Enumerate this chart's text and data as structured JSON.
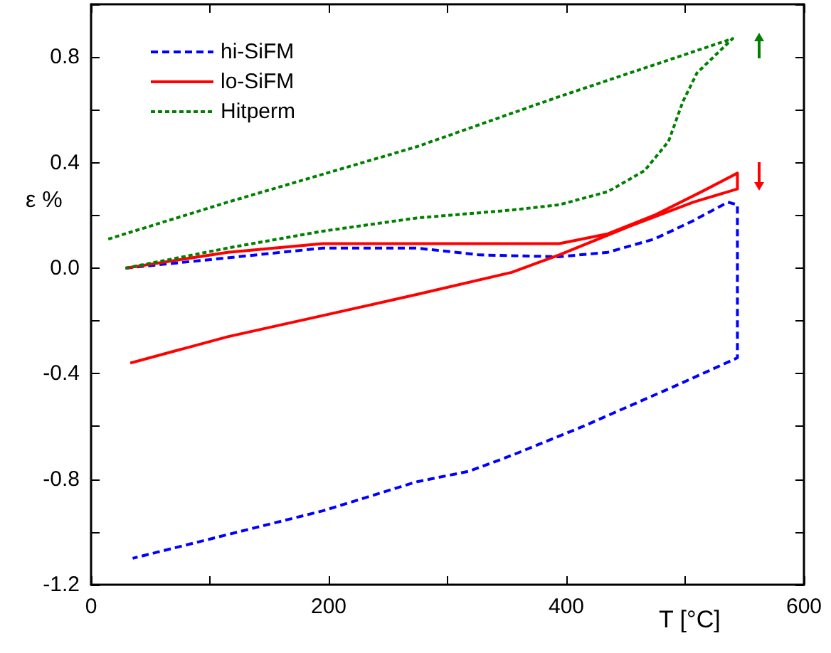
{
  "chart_data": {
    "type": "line",
    "xlabel": "T [°C]",
    "ylabel": "ε %",
    "xlim": [
      0,
      600
    ],
    "xticks": [
      0,
      {
        "value": 100,
        "label": null
      },
      200,
      {
        "value": 300,
        "label": null
      },
      400,
      {
        "value": 500,
        "label": null
      },
      600
    ],
    "ylim": [
      -1.2,
      1.0
    ],
    "yticks": [
      -1.2,
      {
        "value": -1.0,
        "label": null
      },
      -0.8,
      {
        "value": -0.6,
        "label": null
      },
      -0.4,
      {
        "value": -0.2,
        "label": null
      },
      {
        "value": 0,
        "label": "0.0"
      },
      {
        "value": 0.2,
        "label": null
      },
      0.4,
      {
        "value": 0.6,
        "label": null
      },
      0.8,
      {
        "value": 1.0,
        "label": null
      }
    ],
    "grid": false,
    "legend": "top left",
    "marker": "none",
    "series": [
      {
        "name": "hi-SiFM",
        "color": "#0000ff",
        "line_style": "dashed",
        "x": [
          29,
          95,
          195,
          274,
          327,
          394,
          435,
          474,
          507,
          536,
          544,
          544,
          495,
          414,
          354,
          318,
          274,
          195,
          115,
          35
        ],
        "values": [
          0,
          0.03,
          0.076,
          0.076,
          0.05,
          0.043,
          0.06,
          0.11,
          0.18,
          0.25,
          0.24,
          -0.34,
          -0.44,
          -0.6,
          -0.71,
          -0.77,
          -0.81,
          -0.92,
          -1.01,
          -1.1
        ]
      },
      {
        "name": "lo-SiFM",
        "color": "#ff0000",
        "line_style": "solid",
        "x": [
          29,
          115,
          195,
          327,
          394,
          435,
          474,
          514,
          544,
          544,
          507,
          454,
          394,
          354,
          274,
          195,
          115,
          33
        ],
        "values": [
          0,
          0.06,
          0.093,
          0.093,
          0.093,
          0.13,
          0.2,
          0.29,
          0.36,
          0.3,
          0.25,
          0.16,
          0.05,
          -0.016,
          -0.1,
          -0.18,
          -0.26,
          -0.36
        ]
      },
      {
        "name": "Hitperm",
        "color": "#008000",
        "line_style": "dotted",
        "x": [
          29,
          115,
          195,
          274,
          354,
          394,
          435,
          466,
          486,
          498,
          510,
          540,
          394,
          274,
          115,
          13
        ],
        "values": [
          0,
          0.076,
          0.14,
          0.19,
          0.22,
          0.24,
          0.29,
          0.37,
          0.48,
          0.63,
          0.74,
          0.87,
          0.65,
          0.46,
          0.25,
          0.108
        ]
      }
    ]
  }
}
